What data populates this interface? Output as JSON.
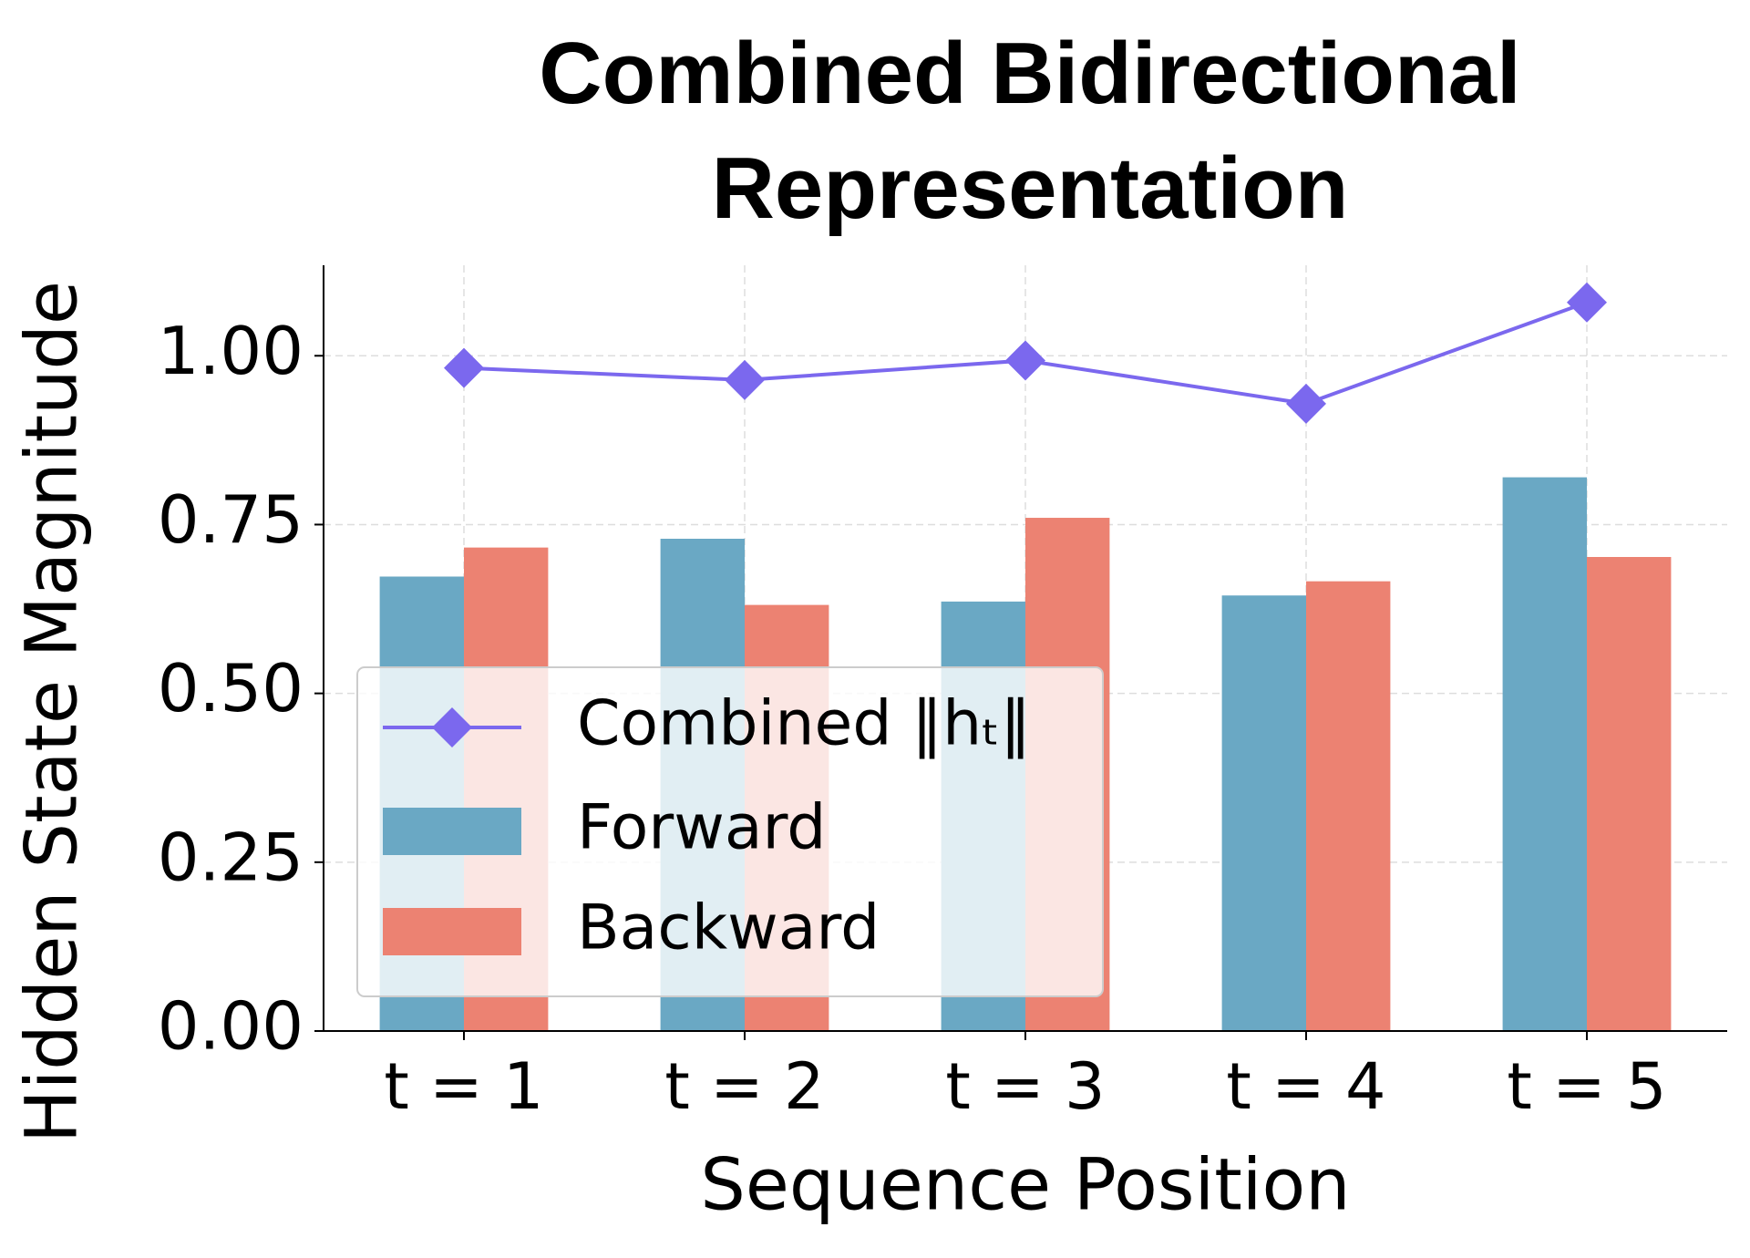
{
  "chart_data": {
    "type": "bar",
    "title": "Combined Bidirectional Representation",
    "x_label": "Sequence Position",
    "y_label": "Hidden State Magnitude",
    "categories": [
      "t = 1",
      "t = 2",
      "t = 3",
      "t = 4",
      "t = 5"
    ],
    "series": [
      {
        "name": "Combined ‖hₜ‖",
        "type": "line",
        "color": "#7b68ee",
        "values": [
          0.982,
          0.964,
          0.993,
          0.929,
          1.079
        ]
      },
      {
        "name": "Forward",
        "type": "bar",
        "color": "#6aa8c4",
        "values": [
          0.673,
          0.729,
          0.636,
          0.645,
          0.82
        ]
      },
      {
        "name": "Backward",
        "type": "bar",
        "color": "#ec8272",
        "values": [
          0.716,
          0.631,
          0.76,
          0.666,
          0.702
        ]
      }
    ],
    "ylim": [
      0,
      1.134
    ],
    "yticks": [
      {
        "value": 0,
        "label": "0.00"
      },
      {
        "value": 0.25,
        "label": "0.25"
      },
      {
        "value": 0.5,
        "label": "0.50"
      },
      {
        "value": 0.75,
        "label": "0.75"
      },
      {
        "value": 1,
        "label": "1.00"
      }
    ],
    "grid": true,
    "legend": "lower left"
  }
}
